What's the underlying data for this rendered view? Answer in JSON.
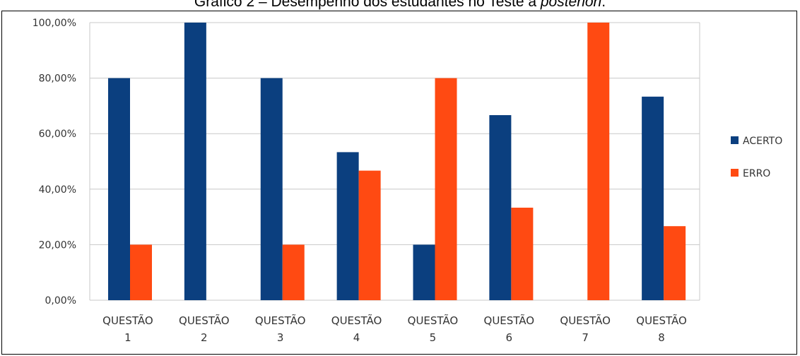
{
  "chart_data": {
    "type": "bar",
    "title_prefix": "Gráfico 2 – Desempenho dos estudantes no Teste a ",
    "title_emph": "posteriori",
    "title_suffix": ".",
    "categories": [
      [
        "QUESTÃO",
        "1"
      ],
      [
        "QUESTÃO",
        "2"
      ],
      [
        "QUESTÃO",
        "3"
      ],
      [
        "QUESTÃO",
        "4"
      ],
      [
        "QUESTÃO",
        "5"
      ],
      [
        "QUESTÃO",
        "6"
      ],
      [
        "QUESTÃO",
        "7"
      ],
      [
        "QUESTÃO",
        "8"
      ]
    ],
    "series": [
      {
        "name": "ACERTO",
        "color": "#0b3f7f",
        "values": [
          80,
          100,
          80,
          53.33,
          20,
          66.67,
          0,
          73.33
        ]
      },
      {
        "name": "ERRO",
        "color": "#ff4a12",
        "values": [
          20,
          0,
          20,
          46.67,
          80,
          33.33,
          100,
          26.67
        ]
      }
    ],
    "yticks": [
      "0,00%",
      "20,00%",
      "40,00%",
      "60,00%",
      "80,00%",
      "100,00%"
    ],
    "ylim": [
      0,
      100
    ],
    "grid": true,
    "legend": "right"
  }
}
